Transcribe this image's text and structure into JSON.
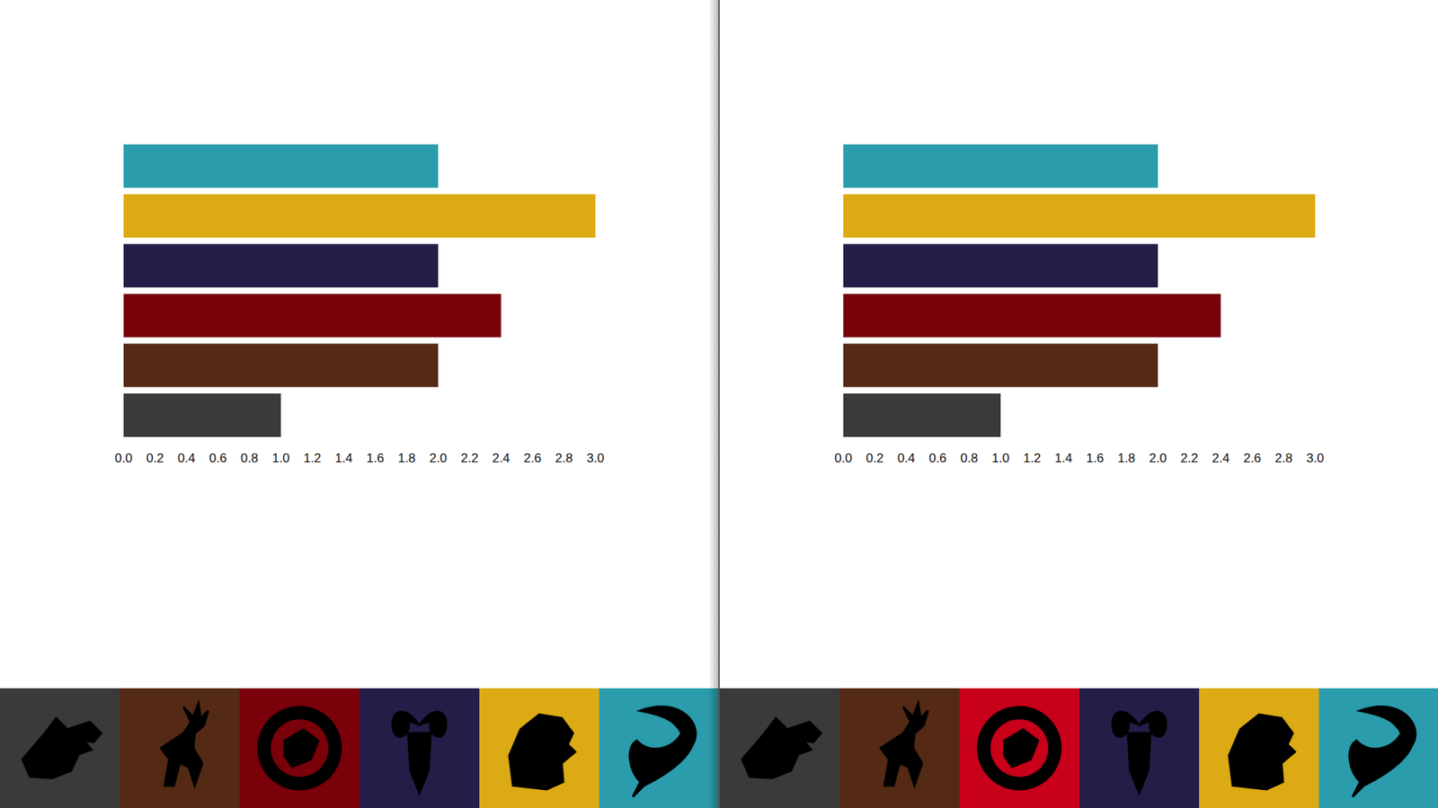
{
  "chart_data": [
    {
      "type": "bar",
      "orientation": "horizontal",
      "categories": [
        null,
        null,
        null,
        null,
        null,
        null
      ],
      "values": [
        2.0,
        3.0,
        2.0,
        2.4,
        2.0,
        1.0
      ],
      "colors": [
        "#2a9cab",
        "#dcaa14",
        "#261c48",
        "#7a000a",
        "#542915",
        "#3a3a3a"
      ],
      "xlim": [
        0,
        3
      ],
      "xticks": [
        {
          "value": 0,
          "label": "0.0"
        },
        0.2,
        0.4,
        0.6,
        0.8,
        {
          "value": 1,
          "label": "1.0"
        },
        1.2,
        1.4,
        1.6,
        1.8,
        {
          "value": 2,
          "label": "2.0"
        },
        2.2,
        2.4,
        2.6,
        2.8,
        {
          "value": 3,
          "label": "3.0"
        }
      ],
      "grid": false
    },
    {
      "type": "bar",
      "orientation": "horizontal",
      "categories": [
        null,
        null,
        null,
        null,
        null,
        null
      ],
      "values": [
        2.0,
        3.0,
        2.0,
        2.4,
        2.0,
        1.0
      ],
      "colors": [
        "#2a9cab",
        "#dcaa14",
        "#261c48",
        "#7a000a",
        "#542915",
        "#3a3a3a"
      ],
      "xlim": [
        0,
        3
      ],
      "xticks": [
        {
          "value": 0,
          "label": "0.0"
        },
        0.2,
        0.4,
        0.6,
        0.8,
        {
          "value": 1,
          "label": "1.0"
        },
        1.2,
        1.4,
        1.6,
        1.8,
        {
          "value": 2,
          "label": "2.0"
        },
        2.2,
        2.4,
        2.6,
        2.8,
        {
          "value": 3,
          "label": "3.0"
        }
      ],
      "grid": false
    }
  ]
}
